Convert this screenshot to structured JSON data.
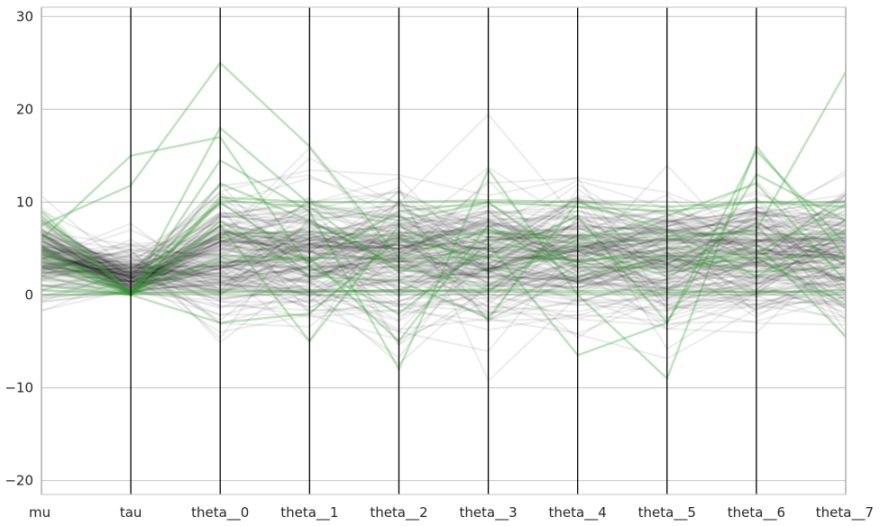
{
  "chart_data": {
    "type": "parallel-coordinates",
    "title": "",
    "xlabel": "",
    "ylabel": "",
    "dimensions": [
      "mu",
      "tau",
      "theta__0",
      "theta__1",
      "theta__2",
      "theta__3",
      "theta__4",
      "theta__5",
      "theta__6",
      "theta__7"
    ],
    "yticks": [
      -20,
      -10,
      0,
      10,
      20,
      30
    ],
    "ylim": [
      -21.5,
      31
    ],
    "grid": true,
    "legend": "none",
    "series": [
      {
        "name": "",
        "group": "divergent",
        "color": "#2ca02c",
        "values": [
          8.5,
          0.2,
          10.2,
          9.5,
          2.5,
          6.0,
          3.5,
          5.0,
          4.5,
          9.8
        ]
      },
      {
        "name": "",
        "group": "divergent",
        "color": "#2ca02c",
        "values": [
          7.5,
          11.8,
          25.0,
          16.0,
          4.0,
          7.0,
          5.5,
          6.0,
          7.0,
          24.0
        ]
      },
      {
        "name": "",
        "group": "divergent",
        "color": "#2ca02c",
        "values": [
          6.0,
          15.0,
          17.0,
          3.0,
          -2.0,
          5.5,
          -6.5,
          -3.0,
          15.5,
          5.5
        ]
      },
      {
        "name": "",
        "group": "divergent",
        "color": "#2ca02c",
        "values": [
          9.0,
          0.2,
          18.0,
          9.8,
          8.0,
          10.0,
          9.5,
          9.0,
          10.0,
          10.0
        ]
      },
      {
        "name": "",
        "group": "divergent",
        "color": "#2ca02c",
        "values": [
          5.2,
          0.1,
          14.5,
          9.0,
          -8.0,
          13.5,
          0.0,
          -9.0,
          16.0,
          4.0
        ]
      },
      {
        "name": "",
        "group": "divergent",
        "color": "#2ca02c",
        "values": [
          4.5,
          0.2,
          10.5,
          10.0,
          10.0,
          10.2,
          10.0,
          9.5,
          10.0,
          9.5
        ]
      },
      {
        "name": "",
        "group": "divergent",
        "color": "#2ca02c",
        "values": [
          4.0,
          0.0,
          7.5,
          -5.0,
          7.5,
          2.5,
          5.0,
          2.0,
          5.5,
          -4.5
        ]
      },
      {
        "name": "",
        "group": "divergent",
        "color": "#2ca02c",
        "values": [
          3.0,
          0.1,
          3.5,
          4.0,
          -5.0,
          7.5,
          2.0,
          4.0,
          2.5,
          3.0
        ]
      },
      {
        "name": "",
        "group": "divergent",
        "color": "#2ca02c",
        "values": [
          2.0,
          0.0,
          -3.0,
          -2.0,
          6.0,
          4.0,
          8.5,
          -3.0,
          13.0,
          8.0
        ]
      },
      {
        "name": "",
        "group": "divergent",
        "color": "#2ca02c",
        "values": [
          0.5,
          0.1,
          0.5,
          0.3,
          0.5,
          0.4,
          0.2,
          0.2,
          0.4,
          0.2
        ]
      },
      {
        "name": "",
        "group": "divergent",
        "color": "#2ca02c",
        "values": [
          0.0,
          0.2,
          0.2,
          0.5,
          0.3,
          0.6,
          0.4,
          0.5,
          0.3,
          0.5
        ]
      },
      {
        "name": "",
        "group": "divergent",
        "color": "#2ca02c",
        "values": [
          3.8,
          0.3,
          4.2,
          4.0,
          3.9,
          4.1,
          3.8,
          4.2,
          4.0,
          4.1
        ]
      },
      {
        "name": "",
        "group": "divergent",
        "color": "#2ca02c",
        "values": [
          6.5,
          0.1,
          6.5,
          6.8,
          6.3,
          6.6,
          6.4,
          6.7,
          6.5,
          6.6
        ]
      },
      {
        "name": "",
        "group": "divergent",
        "color": "#2ca02c",
        "values": [
          8.0,
          0.2,
          10.0,
          3.5,
          9.0,
          10.0,
          3.0,
          3.0,
          4.0,
          -1.0
        ]
      },
      {
        "name": "",
        "group": "divergent",
        "color": "#2ca02c",
        "values": [
          1.0,
          0.0,
          8.0,
          2.0,
          1.5,
          -2.5,
          10.0,
          7.0,
          2.0,
          7.0
        ]
      },
      {
        "name": "",
        "group": "divergent",
        "color": "#2ca02c",
        "values": [
          5.0,
          0.1,
          12.0,
          8.0,
          3.0,
          1.0,
          6.0,
          8.5,
          12.0,
          1.5
        ]
      }
    ]
  }
}
